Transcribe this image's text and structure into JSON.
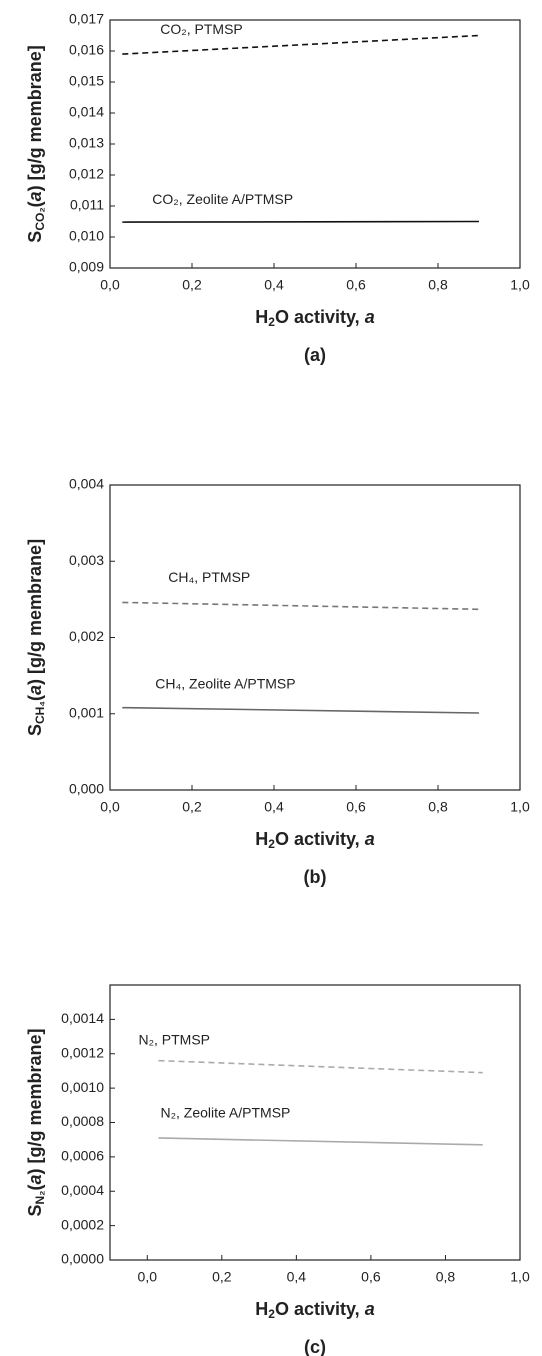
{
  "chart_data": [
    {
      "type": "line",
      "caption": "(a)",
      "x_label": [
        "H",
        "2",
        "O activity, ",
        "a"
      ],
      "y_label": [
        "S",
        "CO₂",
        "(",
        "a",
        ") [g/g membrane]"
      ],
      "x": [
        0.03,
        0.9
      ],
      "series": [
        {
          "name": "CO₂, PTMSP",
          "color": "#111111",
          "style": "dashed",
          "values": [
            0.0159,
            0.0165
          ]
        },
        {
          "name": "CO₂, Zeolite A/PTMSP",
          "color": "#111111",
          "style": "solid",
          "values": [
            0.01048,
            0.0105
          ]
        }
      ],
      "xlim": [
        0,
        1
      ],
      "ylim": [
        0.009,
        0.017
      ],
      "xticks": [
        {
          "value": 0,
          "label": "0,0"
        },
        {
          "value": 0.2,
          "label": "0,2"
        },
        {
          "value": 0.4,
          "label": "0,4"
        },
        {
          "value": 0.6,
          "label": "0,6"
        },
        {
          "value": 0.8,
          "label": "0,8"
        },
        {
          "value": 1,
          "label": "1,0"
        }
      ],
      "yticks": [
        {
          "value": 0.009,
          "label": "0,009"
        },
        {
          "value": 0.01,
          "label": "0,010"
        },
        {
          "value": 0.011,
          "label": "0,011"
        },
        {
          "value": 0.012,
          "label": "0,012"
        },
        {
          "value": 0.013,
          "label": "0,013"
        },
        {
          "value": 0.014,
          "label": "0,014"
        },
        {
          "value": 0.015,
          "label": "0,015"
        },
        {
          "value": 0.016,
          "label": "0,016"
        },
        {
          "value": 0.017,
          "label": "0,017"
        }
      ]
    },
    {
      "type": "line",
      "caption": "(b)",
      "x_label": [
        "H",
        "2",
        "O activity, ",
        "a"
      ],
      "y_label": [
        "S",
        "CH₄",
        "(",
        "a",
        ") [g/g membrane]"
      ],
      "x": [
        0.03,
        0.9
      ],
      "series": [
        {
          "name": "CH₄, PTMSP",
          "color": "#777777",
          "style": "dashed",
          "values": [
            0.00246,
            0.00237
          ]
        },
        {
          "name": "CH₄, Zeolite A/PTMSP",
          "color": "#666666",
          "style": "solid",
          "values": [
            0.00108,
            0.00101
          ]
        }
      ],
      "xlim": [
        0,
        1
      ],
      "ylim": [
        0,
        0.004
      ],
      "xticks": [
        {
          "value": 0,
          "label": "0,0"
        },
        {
          "value": 0.2,
          "label": "0,2"
        },
        {
          "value": 0.4,
          "label": "0,4"
        },
        {
          "value": 0.6,
          "label": "0,6"
        },
        {
          "value": 0.8,
          "label": "0,8"
        },
        {
          "value": 1,
          "label": "1,0"
        }
      ],
      "yticks": [
        {
          "value": 0,
          "label": "0,000"
        },
        {
          "value": 0.001,
          "label": "0,001"
        },
        {
          "value": 0.002,
          "label": "0,002"
        },
        {
          "value": 0.003,
          "label": "0,003"
        },
        {
          "value": 0.004,
          "label": "0,004"
        }
      ]
    },
    {
      "type": "line",
      "caption": "(c)",
      "x_label": [
        "H",
        "2",
        "O activity, ",
        "a"
      ],
      "y_label": [
        "S",
        "N₂",
        "(",
        "a",
        ") [g/g membrane]"
      ],
      "x": [
        0.03,
        0.9
      ],
      "series": [
        {
          "name": "N₂, PTMSP",
          "color": "#aaaaaa",
          "style": "dashed",
          "values": [
            0.00116,
            0.00109
          ]
        },
        {
          "name": "N₂, Zeolite A/PTMSP",
          "color": "#aaaaaa",
          "style": "solid",
          "values": [
            0.00071,
            0.00067
          ]
        }
      ],
      "xlim": [
        -0.1,
        1
      ],
      "ylim": [
        0,
        0.0016
      ],
      "xticks": [
        {
          "value": 0,
          "label": "0,0"
        },
        {
          "value": 0.2,
          "label": "0,2"
        },
        {
          "value": 0.4,
          "label": "0,4"
        },
        {
          "value": 0.6,
          "label": "0,6"
        },
        {
          "value": 0.8,
          "label": "0,8"
        },
        {
          "value": 1,
          "label": "1,0"
        }
      ],
      "yticks": [
        {
          "value": 0,
          "label": "0,0000"
        },
        {
          "value": 0.0002,
          "label": "0,0002"
        },
        {
          "value": 0.0004,
          "label": "0,0004"
        },
        {
          "value": 0.0006,
          "label": "0,0006"
        },
        {
          "value": 0.0008,
          "label": "0,0008"
        },
        {
          "value": 0.001,
          "label": "0,0010"
        },
        {
          "value": 0.0012,
          "label": "0,0012"
        },
        {
          "value": 0.0014,
          "label": "0,0014"
        }
      ]
    }
  ]
}
